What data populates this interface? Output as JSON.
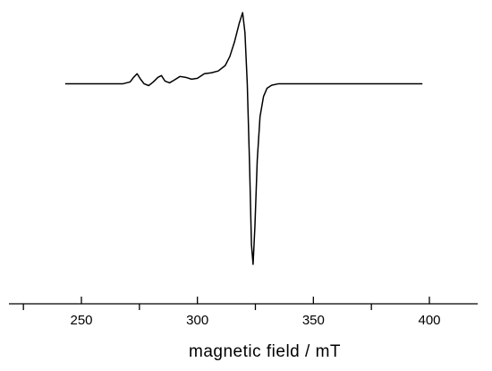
{
  "chart_data": {
    "type": "line",
    "title": "",
    "xlabel": "magnetic field / mT",
    "ylabel": "",
    "xlim": [
      220,
      420
    ],
    "ylim": [
      -1.0,
      0.41
    ],
    "x_ticks_major": [
      250,
      300,
      350,
      400
    ],
    "x_tick_labels": [
      "250",
      "300",
      "350",
      "400"
    ],
    "x_ticks_minor": [
      225,
      275,
      325,
      375,
      425
    ],
    "grid": false,
    "legend": "none",
    "y_axis_visible": false,
    "line_color": "#000000",
    "series": [
      {
        "x": [
          243,
          260,
          268,
          271,
          272.5,
          274,
          275.5,
          277,
          279,
          281,
          283,
          284.5,
          286,
          288,
          290,
          292.5,
          295,
          297.5,
          300,
          303,
          306,
          309,
          312,
          314,
          316,
          318,
          319.5,
          320.5,
          321.5,
          322.5,
          323.3,
          324,
          324.8,
          325.8,
          327,
          328.5,
          330,
          332,
          335,
          340,
          350,
          370,
          397
        ],
        "y": [
          0.0,
          0.0,
          0.0,
          0.01,
          0.035,
          0.055,
          0.025,
          0.0,
          -0.01,
          0.01,
          0.035,
          0.045,
          0.015,
          0.005,
          0.02,
          0.04,
          0.035,
          0.025,
          0.03,
          0.055,
          0.06,
          0.07,
          0.1,
          0.15,
          0.23,
          0.33,
          0.39,
          0.28,
          0.0,
          -0.45,
          -0.88,
          -0.99,
          -0.78,
          -0.42,
          -0.18,
          -0.07,
          -0.025,
          -0.008,
          0.0,
          0.0,
          0.0,
          0.0,
          0.0
        ]
      }
    ]
  }
}
